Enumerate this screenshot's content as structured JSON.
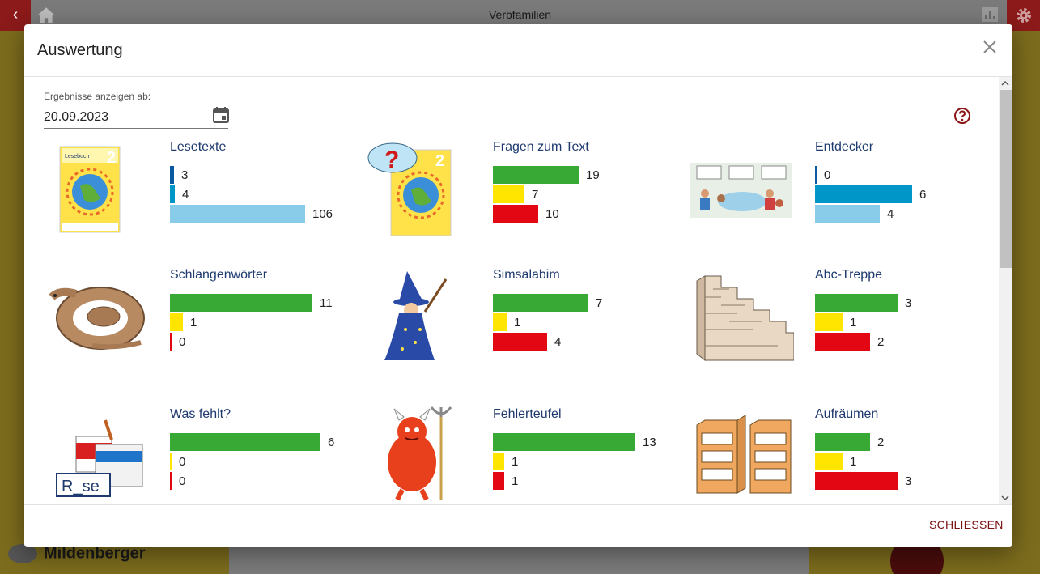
{
  "app": {
    "title": "Verbfamilien",
    "logo": "Mildenberger"
  },
  "dialog": {
    "title": "Auswertung",
    "close_label": "SCHLIESSEN",
    "date_label": "Ergebnisse anzeigen ab:",
    "date_value": "20.09.2023"
  },
  "colors": {
    "green": "#39a935",
    "yellow": "#ffe500",
    "red": "#e30613",
    "darkblue": "#0b5aa0",
    "blue": "#0096c8",
    "lightblue": "#88cce9"
  },
  "cards": [
    {
      "title": "Lesetexte",
      "icon": "lesebuch-cover-icon",
      "rows": [
        {
          "color": "darkblue",
          "value": 3,
          "text": "3"
        },
        {
          "color": "blue",
          "value": 4,
          "text": "4"
        },
        {
          "color": "lightblue",
          "value": 106,
          "text": "106"
        }
      ]
    },
    {
      "title": "Fragen zum Text",
      "icon": "lesebuch-question-icon",
      "rows": [
        {
          "color": "green",
          "value": 19,
          "text": "19"
        },
        {
          "color": "yellow",
          "value": 7,
          "text": "7"
        },
        {
          "color": "red",
          "value": 10,
          "text": "10"
        }
      ]
    },
    {
      "title": "Entdecker",
      "icon": "classroom-scene-icon",
      "rows": [
        {
          "color": "darkblue",
          "value": 0,
          "text": "0"
        },
        {
          "color": "blue",
          "value": 6,
          "text": "6"
        },
        {
          "color": "lightblue",
          "value": 4,
          "text": "4"
        }
      ]
    },
    {
      "title": "Schlangenwörter",
      "icon": "snake-icon",
      "rows": [
        {
          "color": "green",
          "value": 11,
          "text": "11"
        },
        {
          "color": "yellow",
          "value": 1,
          "text": "1"
        },
        {
          "color": "red",
          "value": 0,
          "text": "0"
        }
      ]
    },
    {
      "title": "Simsalabim",
      "icon": "wizard-icon",
      "rows": [
        {
          "color": "green",
          "value": 7,
          "text": "7"
        },
        {
          "color": "yellow",
          "value": 1,
          "text": "1"
        },
        {
          "color": "red",
          "value": 4,
          "text": "4"
        }
      ]
    },
    {
      "title": "Abc-Treppe",
      "icon": "stairs-icon",
      "rows": [
        {
          "color": "green",
          "value": 3,
          "text": "3"
        },
        {
          "color": "yellow",
          "value": 1,
          "text": "1"
        },
        {
          "color": "red",
          "value": 2,
          "text": "2"
        }
      ]
    },
    {
      "title": "Was fehlt?",
      "icon": "paint-buckets-icon",
      "sign": "R_se",
      "rows": [
        {
          "color": "green",
          "value": 6,
          "text": "6"
        },
        {
          "color": "yellow",
          "value": 0,
          "text": "0"
        },
        {
          "color": "red",
          "value": 0,
          "text": "0"
        }
      ]
    },
    {
      "title": "Fehlerteufel",
      "icon": "devil-icon",
      "rows": [
        {
          "color": "green",
          "value": 13,
          "text": "13"
        },
        {
          "color": "yellow",
          "value": 1,
          "text": "1"
        },
        {
          "color": "red",
          "value": 1,
          "text": "1"
        }
      ]
    },
    {
      "title": "Aufräumen",
      "icon": "shelves-icon",
      "rows": [
        {
          "color": "green",
          "value": 2,
          "text": "2"
        },
        {
          "color": "yellow",
          "value": 1,
          "text": "1"
        },
        {
          "color": "red",
          "value": 3,
          "text": "3"
        }
      ]
    }
  ]
}
